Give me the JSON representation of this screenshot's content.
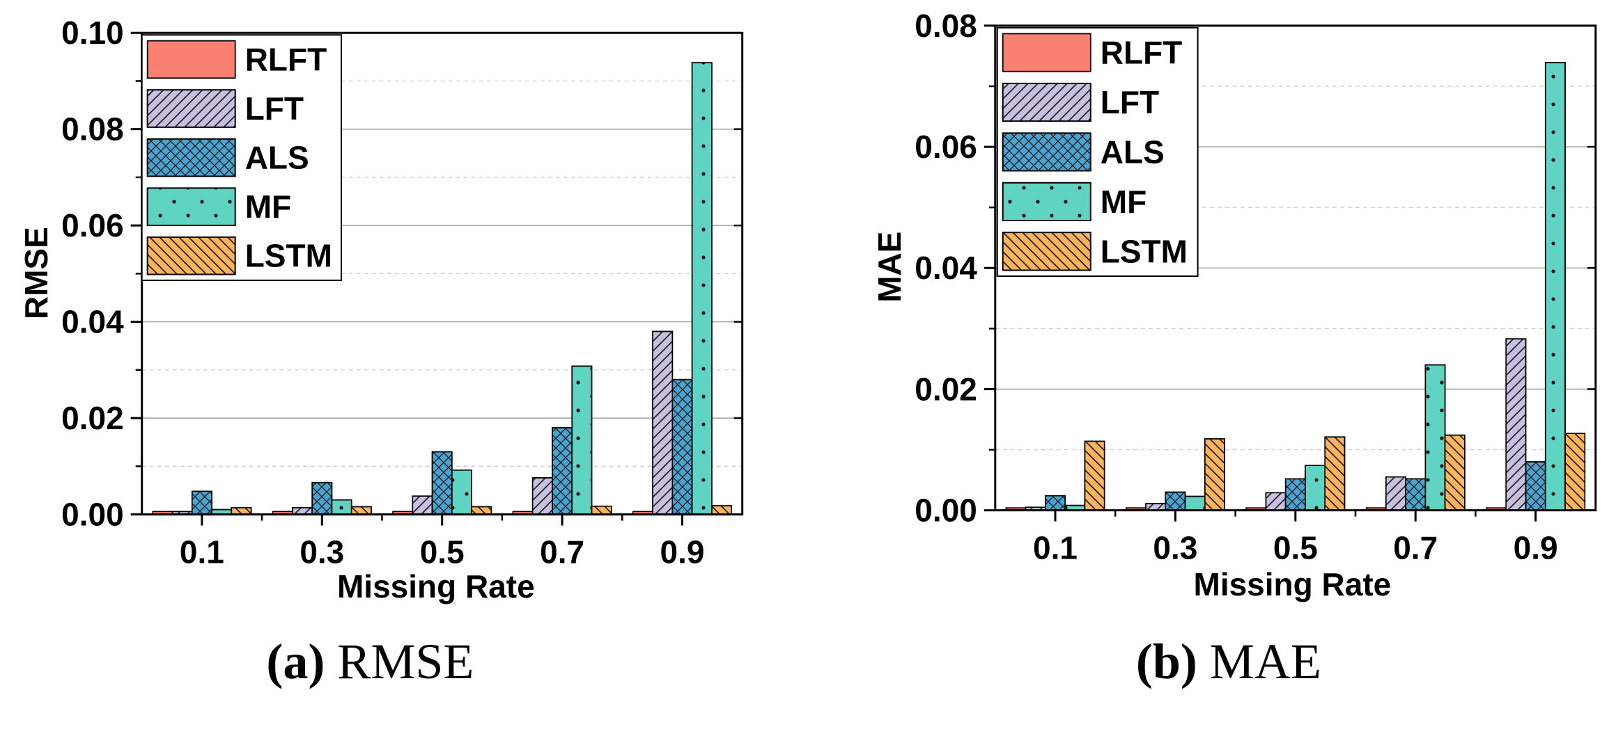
{
  "chart_data": [
    {
      "type": "bar",
      "id": "rmse",
      "ylabel": "RMSE",
      "xlabel": "Missing Rate",
      "categories": [
        "0.1",
        "0.3",
        "0.5",
        "0.7",
        "0.9"
      ],
      "ylim": [
        0,
        0.1
      ],
      "yticks": [
        "0.00",
        "0.02",
        "0.04",
        "0.06",
        "0.08",
        "0.10"
      ],
      "ytick_values": [
        0,
        0.02,
        0.04,
        0.06,
        0.08,
        0.1
      ],
      "legend_position": "top-left",
      "grid": true,
      "series": [
        {
          "name": "RLFT",
          "values": [
            0.0006,
            0.0006,
            0.0006,
            0.0006,
            0.0006
          ]
        },
        {
          "name": "LFT",
          "values": [
            0.0006,
            0.0014,
            0.0038,
            0.0076,
            0.038
          ]
        },
        {
          "name": "ALS",
          "values": [
            0.0048,
            0.0066,
            0.013,
            0.018,
            0.028
          ]
        },
        {
          "name": "MF",
          "values": [
            0.001,
            0.003,
            0.0092,
            0.0308,
            0.0938
          ]
        },
        {
          "name": "LSTM",
          "values": [
            0.0014,
            0.0016,
            0.0016,
            0.0017,
            0.0018
          ]
        }
      ],
      "caption": {
        "label": "(a)",
        "text": "RMSE"
      }
    },
    {
      "type": "bar",
      "id": "mae",
      "ylabel": "MAE",
      "xlabel": "Missing Rate",
      "categories": [
        "0.1",
        "0.3",
        "0.5",
        "0.7",
        "0.9"
      ],
      "ylim": [
        0,
        0.08
      ],
      "yticks": [
        "0.00",
        "0.02",
        "0.04",
        "0.06",
        "0.08"
      ],
      "ytick_values": [
        0,
        0.02,
        0.04,
        0.06,
        0.08
      ],
      "legend_position": "top-left",
      "grid": true,
      "series": [
        {
          "name": "RLFT",
          "values": [
            0.0004,
            0.0004,
            0.0004,
            0.0004,
            0.0004
          ]
        },
        {
          "name": "LFT",
          "values": [
            0.0005,
            0.0011,
            0.0029,
            0.0055,
            0.0283
          ]
        },
        {
          "name": "ALS",
          "values": [
            0.0024,
            0.003,
            0.0052,
            0.0052,
            0.008
          ]
        },
        {
          "name": "MF",
          "values": [
            0.0008,
            0.0023,
            0.0074,
            0.024,
            0.0739
          ]
        },
        {
          "name": "LSTM",
          "values": [
            0.0114,
            0.0118,
            0.0121,
            0.0124,
            0.0127
          ]
        }
      ],
      "caption": {
        "label": "(b)",
        "text": "MAE"
      }
    }
  ],
  "series_styles": [
    {
      "name": "RLFT",
      "fill": "#fa8072",
      "pattern": "solid"
    },
    {
      "name": "LFT",
      "fill": "#c8c0e0",
      "pattern": "diag-up"
    },
    {
      "name": "ALS",
      "fill": "#4aa3d0",
      "pattern": "crosshatch"
    },
    {
      "name": "MF",
      "fill": "#5fd4c2",
      "pattern": "dots"
    },
    {
      "name": "LSTM",
      "fill": "#ffb35c",
      "pattern": "diag-down"
    }
  ]
}
